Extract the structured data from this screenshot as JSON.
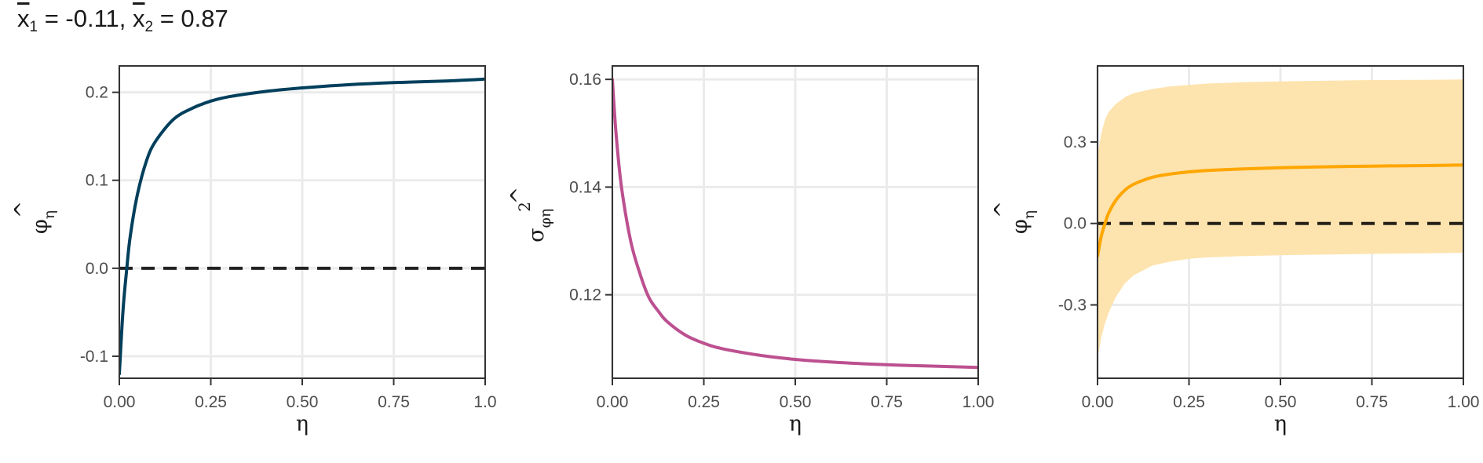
{
  "figure_title": {
    "x1_symbol": "x",
    "x1_sub": "1",
    "x1_text": " = -0.11, ",
    "x2_symbol": "x",
    "x2_sub": "2",
    "x2_text": " = 0.87"
  },
  "colors": {
    "panel1_line": "#003f5c",
    "panel2_line": "#bc5090",
    "panel3_line": "#ffa600",
    "panel3_band": "#fde3ad",
    "reference_line": "#000000",
    "grid": "#ebebeb",
    "panel_border": "#333333"
  },
  "chart_data": [
    {
      "type": "line",
      "title": "",
      "xlabel": "η",
      "ylabel": {
        "base": "φ",
        "hat": "^",
        "sub": "η"
      },
      "xlim": [
        0,
        1
      ],
      "ylim": [
        -0.125,
        0.23
      ],
      "xticks": [
        0,
        0.25,
        0.5,
        0.75,
        1.0
      ],
      "xtick_labels": [
        "0.00",
        "0.25",
        "0.50",
        "0.75",
        "1.0"
      ],
      "yticks": [
        -0.1,
        0.0,
        0.1,
        0.2
      ],
      "ytick_labels": [
        "-0.1",
        "0.0",
        "0.1",
        "0.2"
      ],
      "series": [
        {
          "name": "estimate",
          "x": [
            0,
            0.01,
            0.02,
            0.03,
            0.05,
            0.075,
            0.1,
            0.15,
            0.2,
            0.25,
            0.3,
            0.4,
            0.5,
            0.6,
            0.75,
            0.9,
            1.0
          ],
          "values": [
            -0.12,
            -0.048,
            -0.002,
            0.037,
            0.085,
            0.123,
            0.145,
            0.17,
            0.182,
            0.19,
            0.195,
            0.201,
            0.205,
            0.208,
            0.211,
            0.213,
            0.215
          ]
        }
      ],
      "reference_line": {
        "y": 0.0,
        "style": "dashed"
      }
    },
    {
      "type": "line",
      "title": "",
      "xlabel": "η",
      "ylabel": {
        "base": "σ",
        "hat": "^",
        "sub": "φη",
        "sup": "2"
      },
      "xlim": [
        0,
        1
      ],
      "ylim": [
        0.1045,
        0.1625
      ],
      "xticks": [
        0,
        0.25,
        0.5,
        0.75,
        1.0
      ],
      "xtick_labels": [
        "0.00",
        "0.25",
        "0.50",
        "0.75",
        "1.00"
      ],
      "yticks": [
        0.12,
        0.14,
        0.16
      ],
      "ytick_labels": [
        "0.12",
        "0.14",
        "0.16"
      ],
      "series": [
        {
          "name": "variance",
          "x": [
            0,
            0.01,
            0.025,
            0.05,
            0.075,
            0.1,
            0.125,
            0.15,
            0.2,
            0.25,
            0.3,
            0.4,
            0.5,
            0.6,
            0.75,
            0.9,
            1.0
          ],
          "values": [
            0.16,
            0.15,
            0.14,
            0.13,
            0.124,
            0.1195,
            0.117,
            0.115,
            0.1125,
            0.111,
            0.11,
            0.1088,
            0.108,
            0.1075,
            0.107,
            0.1067,
            0.1065
          ]
        }
      ]
    },
    {
      "type": "area",
      "title": "",
      "xlabel": "η",
      "ylabel": {
        "base": "φ",
        "hat": "^",
        "sub": "η"
      },
      "xlim": [
        0,
        1
      ],
      "ylim": [
        -0.57,
        0.58
      ],
      "xticks": [
        0,
        0.25,
        0.5,
        0.75,
        1.0
      ],
      "xtick_labels": [
        "0.00",
        "0.25",
        "0.50",
        "0.75",
        "1.00"
      ],
      "yticks": [
        -0.3,
        0.0,
        0.3
      ],
      "ytick_labels": [
        "-0.3",
        "0.0",
        "0.3"
      ],
      "series": [
        {
          "name": "estimate",
          "x": [
            0,
            0.01,
            0.02,
            0.03,
            0.05,
            0.075,
            0.1,
            0.15,
            0.2,
            0.25,
            0.3,
            0.4,
            0.5,
            0.6,
            0.75,
            0.9,
            1.0
          ],
          "values": [
            -0.12,
            -0.048,
            -0.002,
            0.037,
            0.085,
            0.123,
            0.145,
            0.17,
            0.182,
            0.19,
            0.195,
            0.201,
            0.205,
            0.208,
            0.211,
            0.213,
            0.215
          ]
        },
        {
          "name": "upper",
          "x": [
            0,
            0.01,
            0.02,
            0.03,
            0.05,
            0.075,
            0.1,
            0.15,
            0.2,
            0.25,
            0.3,
            0.4,
            0.5,
            0.6,
            0.75,
            0.9,
            1.0
          ],
          "values": [
            0.25,
            0.33,
            0.38,
            0.41,
            0.44,
            0.465,
            0.48,
            0.495,
            0.505,
            0.51,
            0.515,
            0.52,
            0.523,
            0.525,
            0.528,
            0.529,
            0.53
          ]
        },
        {
          "name": "lower",
          "x": [
            0,
            0.01,
            0.02,
            0.03,
            0.05,
            0.075,
            0.1,
            0.15,
            0.2,
            0.25,
            0.3,
            0.4,
            0.5,
            0.6,
            0.75,
            0.9,
            1.0
          ],
          "values": [
            -0.5,
            -0.42,
            -0.37,
            -0.33,
            -0.27,
            -0.22,
            -0.19,
            -0.155,
            -0.14,
            -0.13,
            -0.125,
            -0.12,
            -0.117,
            -0.115,
            -0.112,
            -0.11,
            -0.108
          ]
        }
      ],
      "reference_line": {
        "y": 0.0,
        "style": "dashed"
      }
    }
  ]
}
